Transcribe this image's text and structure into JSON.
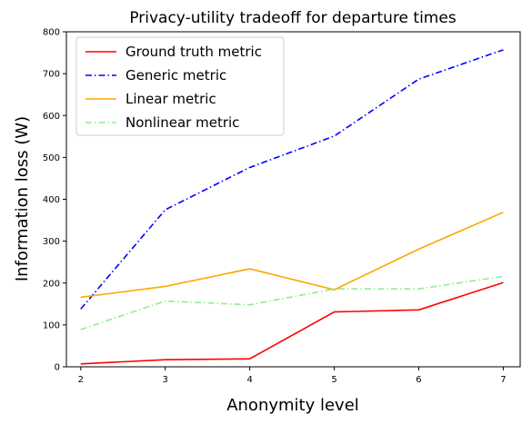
{
  "chart_data": {
    "type": "line",
    "title": "Privacy-utility tradeoff for departure times",
    "xlabel": "Anonymity level",
    "ylabel": "Information loss (W)",
    "x": [
      2,
      3,
      4,
      5,
      6,
      7
    ],
    "xlim": [
      1.83,
      7.2
    ],
    "ylim": [
      0,
      800
    ],
    "xticks": [
      2,
      3,
      4,
      5,
      6,
      7
    ],
    "yticks": [
      0,
      100,
      200,
      300,
      400,
      500,
      600,
      700,
      800
    ],
    "grid": false,
    "legend_position": "upper-left",
    "series": [
      {
        "name": "Ground truth metric",
        "color": "#ff0000",
        "dash": "solid",
        "values": [
          7,
          17,
          19,
          131,
          136,
          201
        ]
      },
      {
        "name": "Generic metric",
        "color": "#0000ff",
        "dash": "dashdot",
        "values": [
          138,
          375,
          476,
          551,
          687,
          757
        ]
      },
      {
        "name": "Linear metric",
        "color": "#ffa500",
        "dash": "solid",
        "values": [
          166,
          192,
          234,
          184,
          281,
          369
        ]
      },
      {
        "name": "Nonlinear metric",
        "color": "#90ee90",
        "dash": "dashdot",
        "values": [
          89,
          157,
          148,
          186,
          186,
          216
        ]
      }
    ]
  }
}
